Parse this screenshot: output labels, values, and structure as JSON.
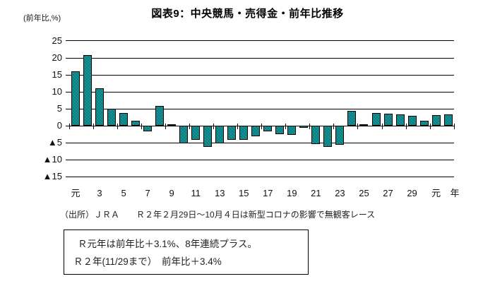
{
  "title": "図表9：中央競馬・売得金・前年比推移",
  "source_note": "（出所）ＪＲＡ　　Ｒ２年２月29日～10月４日は新型コロナの影響で無観客レース",
  "note_box": {
    "line1": "Ｒ元年は前年比＋3.1%、8年連続プラス。",
    "line2": "Ｒ２年(11/29まで）　前年比＋3.4%"
  },
  "chart_data": {
    "type": "bar",
    "title": "図表9：中央競馬・売得金・前年比推移",
    "unit_label": "(前年比,%)",
    "x_axis_suffix": "年",
    "ylim": [
      -15,
      25
    ],
    "ytick_values": [
      25,
      20,
      15,
      10,
      5,
      0,
      -5,
      -10,
      -15
    ],
    "ytick_labels": [
      "25",
      "20",
      "15",
      "10",
      "5",
      "0",
      "▲5",
      "▲10",
      "▲15"
    ],
    "grid": true,
    "legend": "none",
    "bar_color": "#0d8e90",
    "categories": [
      "H元",
      "H2",
      "H3",
      "H4",
      "H5",
      "H6",
      "H7",
      "H8",
      "H9",
      "H10",
      "H11",
      "H12",
      "H13",
      "H14",
      "H15",
      "H16",
      "H17",
      "H18",
      "H19",
      "H20",
      "H21",
      "H22",
      "H23",
      "H24",
      "H25",
      "H26",
      "H27",
      "H28",
      "H29",
      "H30",
      "R元",
      "R2"
    ],
    "values": [
      16.0,
      20.8,
      11.0,
      5.0,
      3.9,
      1.6,
      -1.7,
      5.9,
      0.4,
      -5.1,
      -4.0,
      -6.2,
      -5.2,
      -4.0,
      -4.0,
      -3.0,
      -1.6,
      -2.4,
      -2.7,
      -0.6,
      -5.4,
      -6.1,
      -5.5,
      4.5,
      0.4,
      3.7,
      3.6,
      3.4,
      2.9,
      1.6,
      3.1,
      3.4
    ],
    "x_tick_labels": [
      "元",
      "3",
      "5",
      "7",
      "9",
      "11",
      "13",
      "15",
      "17",
      "19",
      "21",
      "23",
      "25",
      "27",
      "29",
      "元"
    ],
    "x_tick_indices": [
      0,
      2,
      4,
      6,
      8,
      10,
      12,
      14,
      16,
      18,
      20,
      22,
      24,
      26,
      28,
      30
    ]
  }
}
